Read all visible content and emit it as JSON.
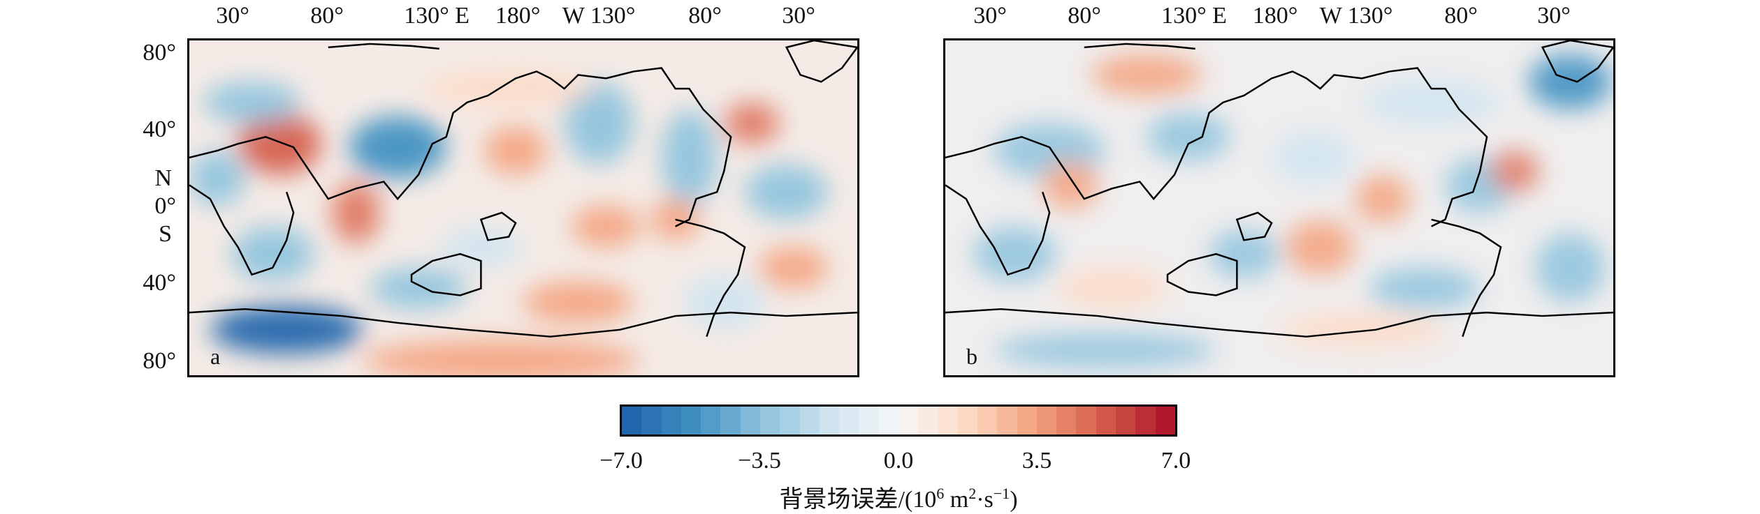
{
  "top_axis": {
    "labels": [
      "30°",
      "80°",
      "130° E",
      "180°",
      "W 130°",
      "80°",
      "30°"
    ]
  },
  "left_axis": {
    "labels": [
      "80°",
      "40°",
      "N",
      "0°",
      "S",
      "40°",
      "80°"
    ]
  },
  "panels": [
    {
      "id": "a",
      "label": "a"
    },
    {
      "id": "b",
      "label": "b"
    }
  ],
  "colorbar": {
    "ticks": [
      "−7.0",
      "−3.5",
      "0.0",
      "3.5",
      "7.0"
    ],
    "title_text": "背景场误差/(10",
    "title_sup1": "6",
    "title_mid": " m",
    "title_sup2": "2",
    "title_mid2": "·s",
    "title_sup3": "−1",
    "title_end": ")",
    "range": [
      -7.0,
      7.0
    ],
    "colors": [
      "#2166ac",
      "#4393c3",
      "#92c5de",
      "#d1e5f0",
      "#f7f7f7",
      "#fddbc7",
      "#f4a582",
      "#d6604d",
      "#b2182b"
    ]
  }
}
